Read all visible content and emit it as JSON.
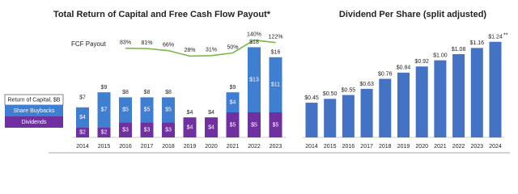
{
  "chart_data": [
    {
      "type": "bar",
      "stacked": true,
      "title": "Total Return of Capital and Free Cash Flow Payout*",
      "categories": [
        "2014",
        "2015",
        "2016",
        "2017",
        "2018",
        "2019",
        "2020",
        "2021",
        "2022",
        "2023"
      ],
      "legend_title": "Return of Capital, $B",
      "series": [
        {
          "name": "Dividends",
          "color": "#7030a0",
          "values": [
            2,
            2,
            3,
            3,
            3,
            4,
            4,
            5,
            5,
            5
          ],
          "value_labels": [
            "$2",
            "$2",
            "$3",
            "$3",
            "$3",
            "$4",
            "$4",
            "$5",
            "$5",
            "$5"
          ]
        },
        {
          "name": "Share Buybacks",
          "color": "#3f7fd2",
          "values": [
            4,
            7,
            5,
            5,
            5,
            null,
            null,
            4,
            13,
            11
          ],
          "value_labels": [
            "$4",
            "$7",
            "$5",
            "$5",
            "$5",
            null,
            null,
            "$4",
            "$13",
            "$11"
          ]
        },
        {
          "name": "FCF Payout",
          "type": "line",
          "axis": "y2",
          "color": "#76b947",
          "values": [
            null,
            null,
            83,
            81,
            66,
            28,
            31,
            50,
            140,
            122
          ],
          "value_labels": [
            null,
            null,
            "83%",
            "81%",
            "66%",
            "28%",
            "31%",
            "50%",
            "140%",
            "122%"
          ]
        }
      ],
      "totals": {
        "values": [
          7,
          9,
          8,
          8,
          8,
          4,
          4,
          9,
          18,
          16
        ],
        "value_labels": [
          "$7",
          "$9",
          "$8",
          "$8",
          "$8",
          "$4",
          "$4",
          "$9",
          "$18",
          "$16"
        ]
      },
      "ylim": [
        0,
        20
      ],
      "y2lim": [
        -540,
        160
      ]
    },
    {
      "type": "bar",
      "title": "Dividend Per Share (split adjusted)",
      "categories": [
        "2014",
        "2015",
        "2016",
        "2017",
        "2018",
        "2019",
        "2020",
        "2021",
        "2022",
        "2023",
        "2024"
      ],
      "values": [
        0.45,
        0.5,
        0.55,
        0.63,
        0.76,
        0.84,
        0.92,
        1.0,
        1.08,
        1.16,
        1.24
      ],
      "value_labels": [
        "$0.45",
        "$0.50",
        "$0.55",
        "$0.63",
        "$0.76",
        "$0.84",
        "$0.92",
        "$1.00",
        "$1.08",
        "$1.16",
        "$1.24"
      ],
      "annotation": "**",
      "color": "#4472c4",
      "ylim": [
        0,
        1.3
      ]
    }
  ]
}
